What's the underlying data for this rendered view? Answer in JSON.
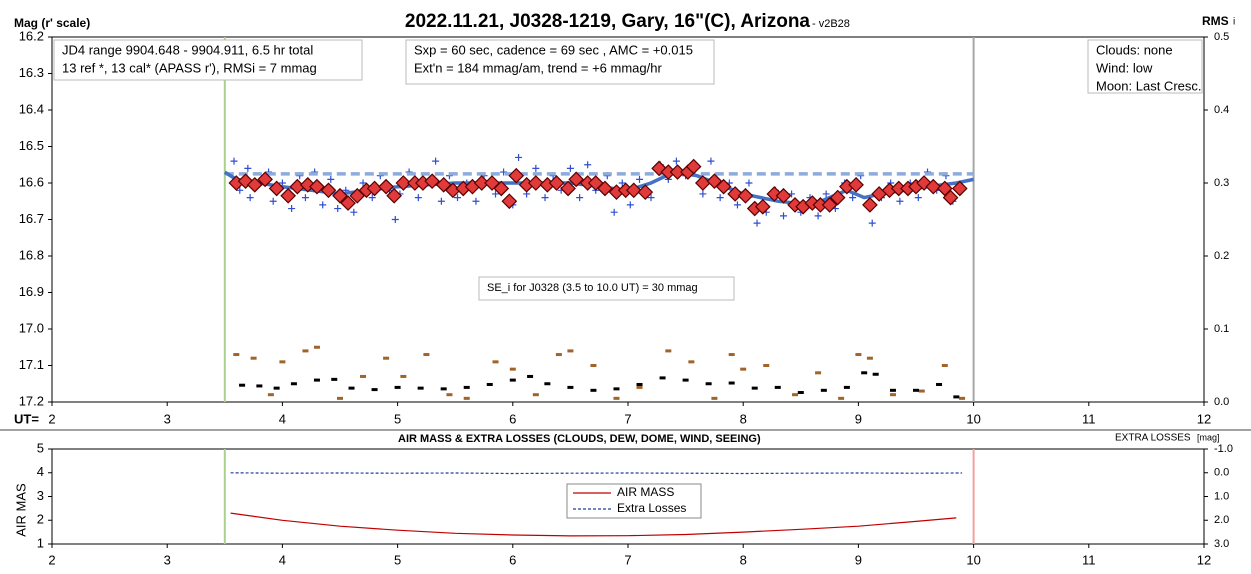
{
  "chart_data": [
    {
      "type": "scatter",
      "title": "2022.11.21, J0328-1219, Gary, 16\"(C), Arizona",
      "subtitle": " - v2B28",
      "ylabel": "Mag (r' scale)",
      "y2label": "RMS",
      "y2label_sub": "i",
      "xlabel": "UT=",
      "xlim": [
        2,
        12
      ],
      "xticks": [
        2,
        3,
        4,
        5,
        6,
        7,
        8,
        9,
        10,
        11,
        12
      ],
      "ylim": [
        17.2,
        16.2
      ],
      "yticks": [
        16.2,
        16.3,
        16.4,
        16.5,
        16.6,
        16.7,
        16.8,
        16.9,
        {
          "value": 17.0,
          "label": "17.0"
        },
        17.1,
        17.2
      ],
      "y2lim": [
        0,
        0.5
      ],
      "y2ticks": [
        {
          "value": 0,
          "label": "0.0"
        },
        0.1,
        0.2,
        0.3,
        0.4,
        0.5
      ],
      "vlines": [
        {
          "x": 3.5,
          "color": "#a9d18e"
        },
        {
          "x": 10,
          "color": "#a6a6a6"
        }
      ],
      "annotations": [
        {
          "lines": [
            "JD4 range 9904.648 - 9904.911, 6.5 hr total",
            "13 ref *, 13 cal*  (APASS r'), RMSi = 7 mmag"
          ]
        },
        {
          "lines": [
            "Sxp = 60 sec, cadence = 69 sec , AMC = +0.015",
            "Ext'n = 184 mmag/am, trend = +6 mmag/hr"
          ]
        },
        {
          "lines": [
            "Clouds: none",
            "Wind: low",
            "Moon: Last Cresc."
          ]
        },
        {
          "lines": [
            "SE_i for J0328 (3.5 to 10.0 UT) = 30 mmag"
          ]
        }
      ],
      "series": [
        {
          "mode": "markers",
          "marker": "cross",
          "color": "#2f4fd0",
          "x": [
            3.58,
            3.63,
            3.7,
            3.72,
            3.8,
            3.88,
            3.92,
            4.0,
            4.08,
            4.15,
            4.2,
            4.28,
            4.35,
            4.42,
            4.48,
            4.55,
            4.62,
            4.7,
            4.78,
            4.85,
            4.93,
            4.98,
            5.02,
            5.1,
            5.18,
            5.25,
            5.33,
            5.38,
            5.45,
            5.52,
            5.6,
            5.68,
            5.75,
            5.85,
            5.92,
            6.0,
            6.05,
            6.12,
            6.2,
            6.28,
            6.35,
            6.42,
            6.5,
            6.58,
            6.65,
            6.72,
            6.82,
            6.88,
            6.95,
            7.02,
            7.1,
            7.2,
            7.28,
            7.35,
            7.42,
            7.5,
            7.58,
            7.65,
            7.72,
            7.8,
            7.88,
            7.95,
            8.05,
            8.12,
            8.2,
            8.28,
            8.35,
            8.42,
            8.5,
            8.58,
            8.65,
            8.72,
            8.8,
            8.88,
            8.95,
            9.02,
            9.12,
            9.2,
            9.28,
            9.36,
            9.45,
            9.52,
            9.6,
            9.68,
            9.76,
            9.82
          ],
          "values": [
            16.54,
            16.62,
            16.56,
            16.64,
            16.6,
            16.57,
            16.65,
            16.6,
            16.67,
            16.58,
            16.64,
            16.57,
            16.66,
            16.59,
            16.67,
            16.62,
            16.68,
            16.6,
            16.64,
            16.58,
            16.62,
            16.7,
            16.63,
            16.57,
            16.64,
            16.6,
            16.54,
            16.65,
            16.58,
            16.64,
            16.6,
            16.65,
            16.58,
            16.63,
            16.57,
            16.66,
            16.53,
            16.63,
            16.56,
            16.64,
            16.58,
            16.62,
            16.56,
            16.64,
            16.55,
            16.62,
            16.58,
            16.68,
            16.6,
            16.66,
            16.59,
            16.64,
            16.55,
            16.59,
            16.54,
            16.58,
            16.55,
            16.63,
            16.54,
            16.64,
            16.6,
            16.66,
            16.6,
            16.71,
            16.68,
            16.62,
            16.69,
            16.63,
            16.68,
            16.64,
            16.69,
            16.63,
            16.67,
            16.6,
            16.64,
            16.58,
            16.71,
            16.64,
            16.6,
            16.65,
            16.6,
            16.64,
            16.57,
            16.62,
            16.58,
            16.65
          ]
        },
        {
          "mode": "line",
          "dash": true,
          "color": "#8faadc",
          "x": [
            3.5,
            10
          ],
          "values": [
            16.575,
            16.575
          ]
        },
        {
          "mode": "line",
          "color": "#4472c4",
          "x": [
            3.5,
            3.6,
            4.0,
            4.5,
            5.0,
            5.5,
            6.0,
            6.5,
            7.0,
            7.2,
            7.4,
            7.6,
            8.0,
            8.3,
            8.6,
            8.9,
            9.05,
            9.2,
            9.6,
            9.85,
            10.0
          ],
          "values": [
            16.57,
            16.59,
            16.61,
            16.63,
            16.61,
            16.6,
            16.6,
            16.6,
            16.62,
            16.6,
            16.57,
            16.58,
            16.63,
            16.65,
            16.66,
            16.62,
            16.64,
            16.63,
            16.61,
            16.6,
            16.59
          ]
        },
        {
          "mode": "markers",
          "marker": "diamond",
          "color": "#e03a3a",
          "x": [
            3.6,
            3.68,
            3.76,
            3.85,
            3.95,
            4.05,
            4.13,
            4.22,
            4.3,
            4.4,
            4.5,
            4.57,
            4.65,
            4.73,
            4.8,
            4.9,
            4.97,
            5.05,
            5.15,
            5.22,
            5.3,
            5.4,
            5.48,
            5.57,
            5.65,
            5.73,
            5.82,
            5.9,
            5.97,
            6.03,
            6.12,
            6.2,
            6.3,
            6.38,
            6.48,
            6.55,
            6.65,
            6.72,
            6.8,
            6.9,
            6.98,
            7.05,
            7.15,
            7.27,
            7.35,
            7.43,
            7.52,
            7.57,
            7.65,
            7.75,
            7.83,
            7.93,
            8.02,
            8.1,
            8.17,
            8.27,
            8.35,
            8.45,
            8.52,
            8.6,
            8.67,
            8.75,
            8.82,
            8.9,
            8.98,
            9.1,
            9.18,
            9.27,
            9.35,
            9.43,
            9.5,
            9.57,
            9.65,
            9.75,
            9.8,
            9.88
          ],
          "values": [
            16.6,
            16.595,
            16.605,
            16.59,
            16.615,
            16.635,
            16.61,
            16.605,
            16.61,
            16.62,
            16.635,
            16.655,
            16.635,
            16.62,
            16.615,
            16.61,
            16.635,
            16.6,
            16.6,
            16.6,
            16.595,
            16.605,
            16.62,
            16.615,
            16.61,
            16.6,
            16.6,
            16.615,
            16.65,
            16.58,
            16.605,
            16.6,
            16.605,
            16.6,
            16.615,
            16.59,
            16.6,
            16.6,
            16.615,
            16.625,
            16.62,
            16.62,
            16.625,
            16.56,
            16.57,
            16.57,
            16.57,
            16.555,
            16.6,
            16.595,
            16.61,
            16.63,
            16.635,
            16.67,
            16.665,
            16.63,
            16.635,
            16.66,
            16.665,
            16.655,
            16.66,
            16.66,
            16.64,
            16.61,
            16.605,
            16.66,
            16.63,
            16.62,
            16.615,
            16.615,
            16.61,
            16.6,
            16.61,
            16.615,
            16.64,
            16.615
          ]
        },
        {
          "mode": "markers",
          "marker": "dash",
          "axis": "y2",
          "color": "#a0632a",
          "x": [
            3.6,
            3.75,
            3.9,
            4.0,
            4.2,
            4.3,
            4.5,
            4.7,
            4.9,
            5.05,
            5.25,
            5.45,
            5.6,
            5.85,
            6.0,
            6.2,
            6.4,
            6.5,
            6.7,
            6.9,
            7.1,
            7.35,
            7.55,
            7.75,
            7.9,
            8.0,
            8.2,
            8.45,
            8.65,
            8.85,
            9.0,
            9.1,
            9.3,
            9.55,
            9.75,
            9.9
          ],
          "values": [
            0.065,
            0.06,
            0.01,
            0.055,
            0.07,
            0.075,
            0.005,
            0.035,
            0.06,
            0.035,
            0.065,
            0.01,
            0.005,
            0.055,
            0.045,
            0.01,
            0.065,
            0.07,
            0.05,
            0.005,
            0.02,
            0.07,
            0.055,
            0.005,
            0.065,
            0.045,
            0.05,
            0.01,
            0.04,
            0.005,
            0.065,
            0.06,
            0.01,
            0.015,
            0.05,
            0.005
          ]
        },
        {
          "mode": "markers",
          "marker": "dash",
          "axis": "y2",
          "color": "#000000",
          "x": [
            3.65,
            3.8,
            3.95,
            4.1,
            4.3,
            4.45,
            4.6,
            4.8,
            5.0,
            5.2,
            5.4,
            5.6,
            5.8,
            6.0,
            6.15,
            6.3,
            6.5,
            6.7,
            6.9,
            7.1,
            7.3,
            7.5,
            7.7,
            7.9,
            8.1,
            8.3,
            8.5,
            8.7,
            8.9,
            9.05,
            9.15,
            9.3,
            9.5,
            9.7,
            9.85
          ],
          "values": [
            0.023,
            0.022,
            0.019,
            0.025,
            0.03,
            0.031,
            0.019,
            0.017,
            0.02,
            0.019,
            0.018,
            0.02,
            0.024,
            0.03,
            0.035,
            0.025,
            0.02,
            0.016,
            0.018,
            0.024,
            0.033,
            0.03,
            0.025,
            0.026,
            0.019,
            0.02,
            0.013,
            0.016,
            0.02,
            0.04,
            0.038,
            0.016,
            0.016,
            0.024,
            0.007
          ]
        }
      ]
    },
    {
      "type": "line",
      "title": "AIR MASS & EXTRA LOSSES (CLOUDS, DEW, DOME, WIND, SEEING)",
      "ylabel": "AIR MAS",
      "y2label": "EXTRA LOSSES",
      "y2label_unit": "[mag]",
      "xlim": [
        2,
        12
      ],
      "xticks": [
        2,
        3,
        4,
        5,
        6,
        7,
        8,
        9,
        10,
        11,
        12
      ],
      "ylim": [
        1,
        5
      ],
      "yticks": [
        1,
        2,
        3,
        4,
        5
      ],
      "y2lim": [
        3,
        -1
      ],
      "y2ticks": [
        {
          "value": -1,
          "label": "-1.0"
        },
        {
          "value": 0,
          "label": "0.0"
        },
        {
          "value": 1,
          "label": "1.0"
        },
        {
          "value": 2,
          "label": "2.0"
        },
        {
          "value": 3,
          "label": "3.0"
        }
      ],
      "vlines": [
        {
          "x": 3.5,
          "color": "#a9d18e"
        },
        {
          "x": 10,
          "color": "#f4a0a0"
        }
      ],
      "legend": "center",
      "series": [
        {
          "name": "AIR MASS",
          "mode": "line",
          "color": "#c00000",
          "x": [
            3.55,
            4.0,
            4.5,
            5.0,
            5.5,
            6.0,
            6.5,
            7.0,
            7.5,
            8.0,
            8.5,
            9.0,
            9.5,
            9.85
          ],
          "values": [
            2.3,
            2.0,
            1.75,
            1.58,
            1.45,
            1.38,
            1.34,
            1.35,
            1.4,
            1.5,
            1.62,
            1.75,
            1.95,
            2.1
          ]
        },
        {
          "name": "Extra Losses",
          "mode": "line",
          "dash": true,
          "axis": "y2",
          "color": "#1f3fa0",
          "x": [
            3.55,
            4.0,
            4.5,
            5.0,
            5.5,
            6.0,
            6.5,
            7.0,
            7.5,
            8.0,
            8.5,
            9.0,
            9.5,
            9.9
          ],
          "values": [
            0.0,
            0.02,
            0.01,
            0.02,
            0.01,
            0.03,
            0.02,
            0.01,
            0.02,
            0.03,
            0.02,
            0.01,
            0.02,
            0.01
          ]
        }
      ]
    }
  ]
}
